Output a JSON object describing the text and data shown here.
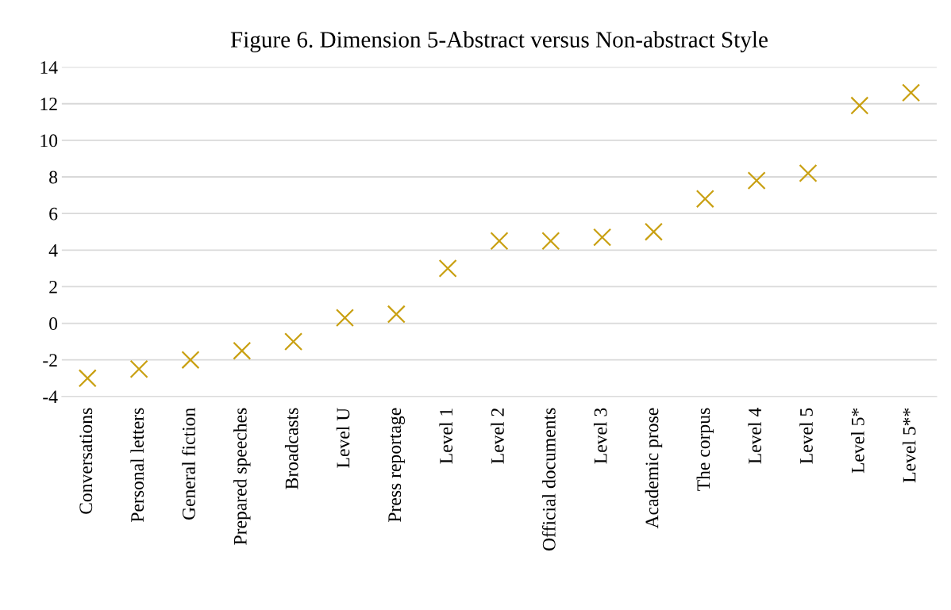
{
  "chart_data": {
    "type": "scatter",
    "title": "Figure 6. Dimension 5-Abstract versus Non-abstract Style",
    "categories": [
      "Conversations",
      "Personal letters",
      "General fiction",
      "Prepared speeches",
      "Broadcasts",
      "Level U",
      "Press reportage",
      "Level 1",
      "Level 2",
      "Official documents",
      "Level 3",
      "Academic prose",
      "The corpus",
      "Level 4",
      "Level 5",
      "Level 5*",
      "Level 5**"
    ],
    "values": [
      -3.0,
      -2.5,
      -2.0,
      -1.5,
      -1.0,
      0.3,
      0.5,
      3.0,
      4.5,
      4.5,
      4.7,
      5.0,
      6.8,
      7.8,
      8.2,
      11.9,
      12.6
    ],
    "color": "#c9a012",
    "marker": "cross",
    "grid": "y",
    "ylim": [
      -4,
      14
    ],
    "yticks": [
      -4,
      -2,
      0,
      2,
      4,
      6,
      8,
      10,
      12,
      14
    ]
  }
}
